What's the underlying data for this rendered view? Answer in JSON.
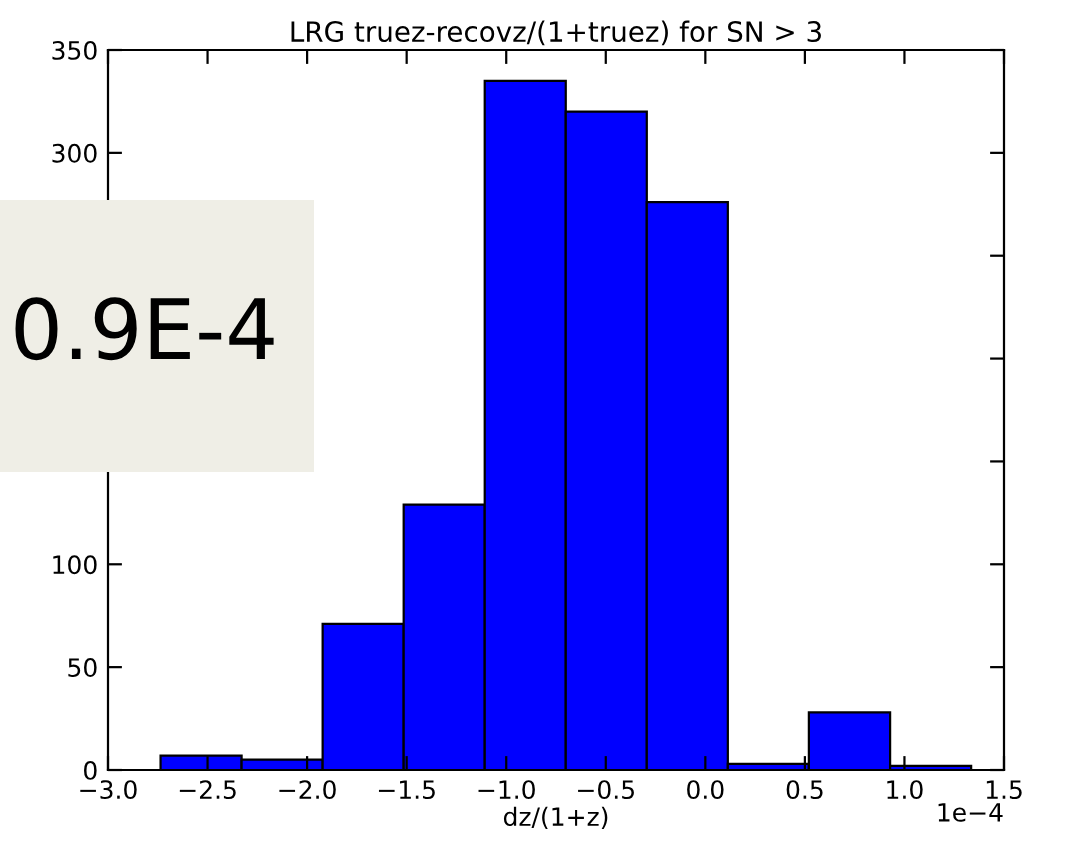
{
  "chart_data": {
    "type": "histogram",
    "title": "LRG truez-recovz/(1+truez) for SN > 3",
    "xlabel": "dz/(1+z)",
    "bins": [
      -2.736,
      -2.329,
      -1.922,
      -1.515,
      -1.108,
      -0.701,
      -0.294,
      0.113,
      0.52,
      0.928,
      1.335
    ],
    "values": [
      7,
      5,
      71,
      129,
      335,
      320,
      276,
      3,
      28,
      2
    ],
    "color": "#0000ff",
    "xlim": [
      -3.0,
      1.5
    ],
    "xticks": [
      {
        "value": -3.0,
        "label": "−3.0"
      },
      {
        "value": -2.5,
        "label": "−2.5"
      },
      {
        "value": -2.0,
        "label": "−2.0"
      },
      {
        "value": -1.5,
        "label": "−1.5"
      },
      {
        "value": -1.0,
        "label": "−1.0"
      },
      {
        "value": -0.5,
        "label": "−0.5"
      },
      {
        "value": 0.0,
        "label": "0.0"
      },
      {
        "value": 0.5,
        "label": "0.5"
      },
      {
        "value": 1.0,
        "label": "1.0"
      },
      {
        "value": 1.5,
        "label": "1.5"
      }
    ],
    "ylim": [
      0,
      350
    ],
    "yticks": [
      0,
      50,
      100,
      {
        "value": 150,
        "label": null
      },
      {
        "value": 200,
        "label": null
      },
      {
        "value": 250,
        "label": null
      },
      300,
      350
    ],
    "annotations": [
      "1e−4",
      "0.9E-4"
    ],
    "grid": false,
    "legend": false
  }
}
